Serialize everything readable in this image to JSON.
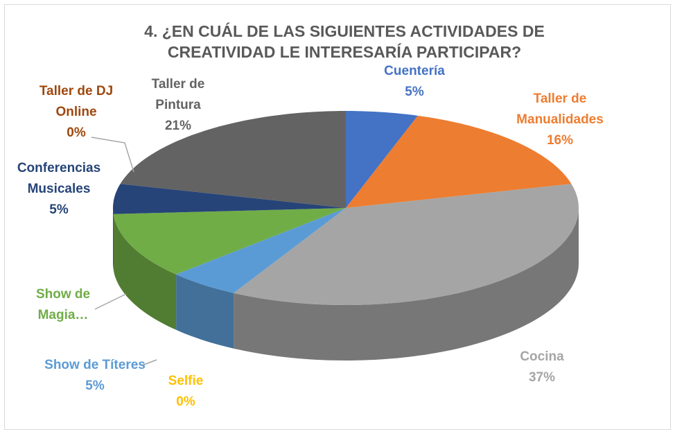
{
  "chart_data": {
    "type": "pie3d",
    "title": "4. ¿EN CUÁL DE LAS SIGUIENTES ACTIVIDADES DE CREATIVIDAD LE INTERESARÍA PARTICIPAR?",
    "categories": [
      "Cuentería",
      "Taller de Manualidades",
      "Cocina",
      "Selfie",
      "Show de Títeres",
      "Show de Magia…",
      "Conferencias Musicales",
      "Taller de DJ Online",
      "Taller de Pintura"
    ],
    "values": [
      5,
      16,
      37,
      0,
      5,
      11,
      5,
      0,
      21
    ],
    "value_labels": [
      "5%",
      "16%",
      "37%",
      "0%",
      "5%",
      null,
      "5%",
      "0%",
      "21%"
    ],
    "colors": [
      "#4472c4",
      "#ed7d31",
      "#a5a5a5",
      "#ffc000",
      "#5b9bd5",
      "#70ad47",
      "#264478",
      "#9e480e",
      "#636363"
    ]
  }
}
